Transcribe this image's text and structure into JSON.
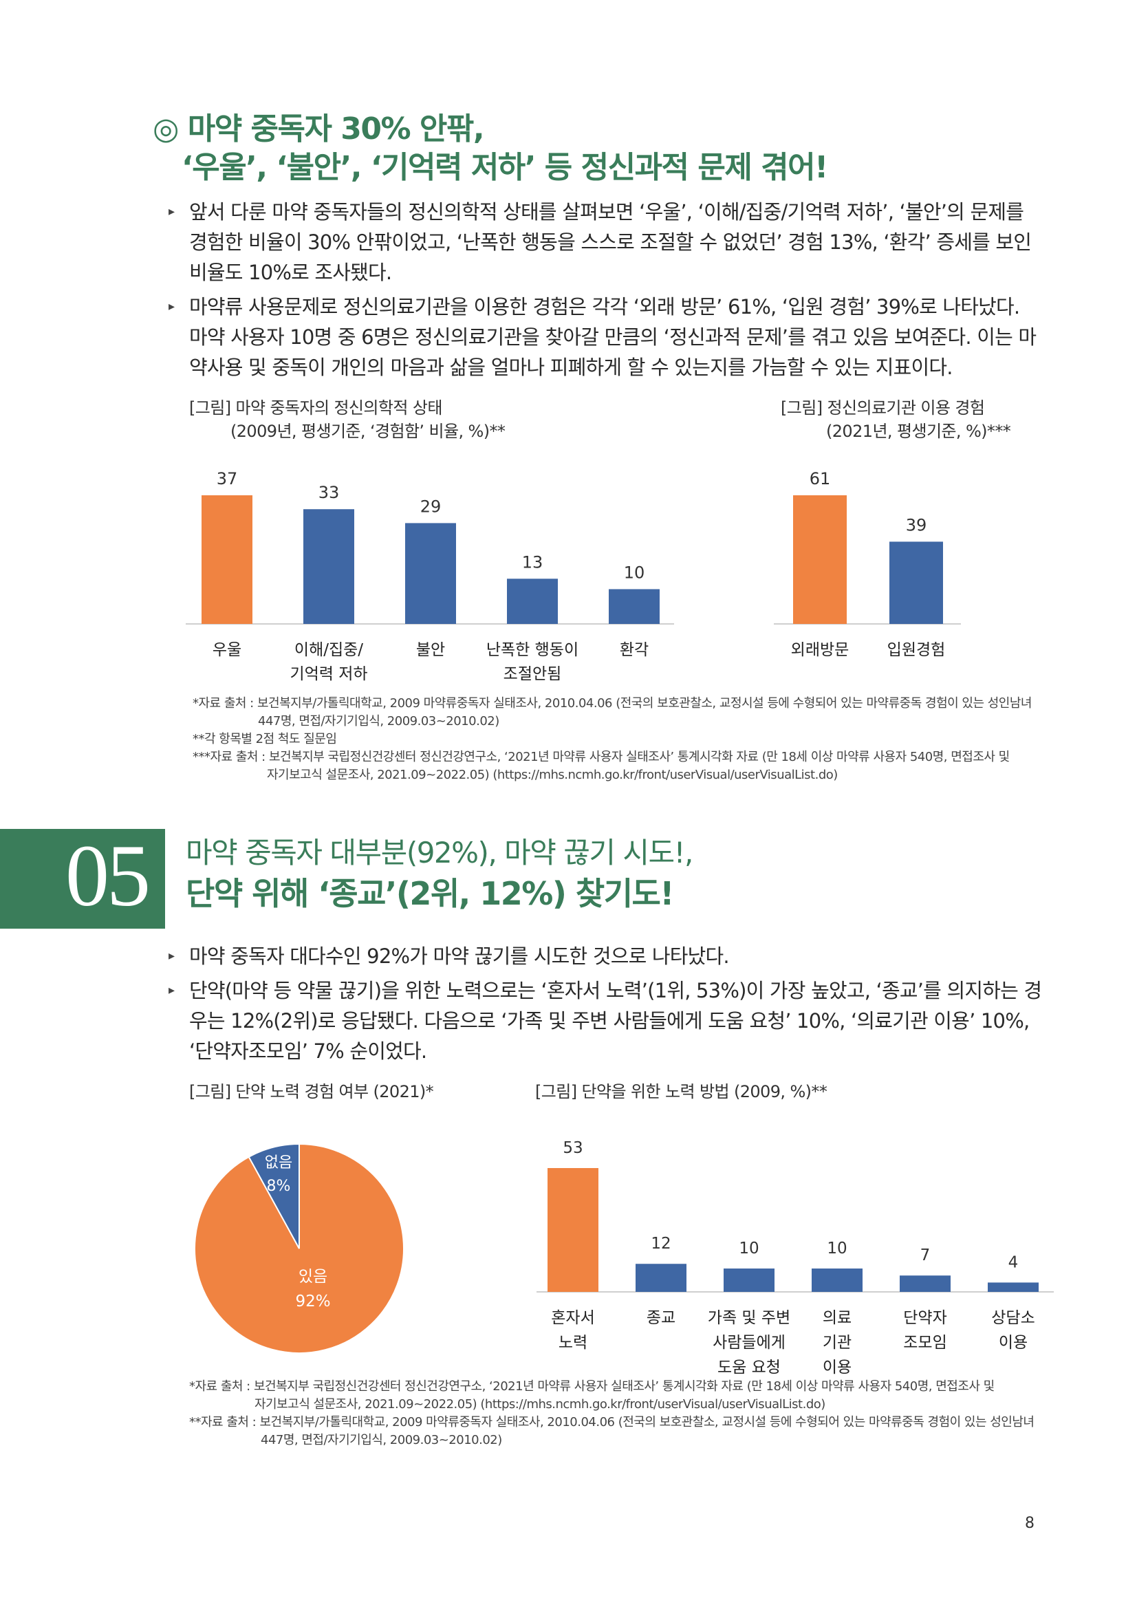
{
  "colors": {
    "accent_green": "#3a7d5a",
    "bar_orange": "#f08341",
    "bar_blue": "#3f67a4"
  },
  "section1": {
    "marker": "◎",
    "title_line1": "마약 중독자 30% 안팎,",
    "title_line2": "‘우울’, ‘불안’, ‘기억력 저하’ 등 정신과적 문제 겪어!",
    "bullets": [
      "앞서 다룬 마약 중독자들의 정신의학적 상태를 살펴보면 ‘우울’, ‘이해/집중/기억력 저하’, ‘불안’의 문제를 경험한 비율이 30% 안팎이었고, ‘난폭한 행동을 스스로 조절할 수 없었던’ 경험 13%, ‘환각’ 증세를 보인 비율도 10%로 조사됐다.",
      "마약류 사용문제로 정신의료기관을 이용한 경험은 각각 ‘외래 방문’ 61%, ‘입원 경험’ 39%로 나타났다. 마약 사용자 10명 중 6명은 정신의료기관을 찾아갈 만큼의 ‘정신과적 문제’를 겪고 있음 보여준다. 이는 마약사용 및 중독이 개인의 마음과 삶을 얼마나 피폐하게 할 수 있는지를 가늠할 수 있는 지표이다."
    ],
    "fig1_caption_line1": "[그림] 마약 중독자의 정신의학적 상태",
    "fig1_caption_line2": "(2009년, 평생기준, ‘경험함’ 비율, %)**",
    "fig2_caption_line1": "[그림] 정신의료기관 이용 경험",
    "fig2_caption_line2": "(2021년, 평생기준, %)***",
    "notes": [
      "*자료 출처 : 보건복지부/가톨릭대학교, 2009 마약류중독자 실태조사, 2010.04.06 (전국의 보호관찰소, 교정시설 등에 수형되어 있는 마약류중독 경험이 있는 성인남녀",
      "447명, 면접/자기기입식, 2009.03~2010.02)",
      "**각 항목별 2점 척도 질문임",
      "***자료 출처 : 보건복지부 국립정신건강센터 정신건강연구소, ‘2021년 마약류 사용자 실태조사’ 통계시각화 자료 (만 18세 이상 마약류 사용자 540명, 면접조사 및",
      "자기보고식 설문조사, 2021.09~2022.05) (https://mhs.ncmh.go.kr/front/userVisual/userVisualList.do)"
    ]
  },
  "section2": {
    "number": "05",
    "title_line1": "마약 중독자 대부분(92%), 마약 끊기 시도!,",
    "title_line2": "단약 위해 ‘종교’(2위, 12%) 찾기도!",
    "bullets": [
      "마약 중독자 대다수인 92%가 마약 끊기를 시도한 것으로 나타났다.",
      "단약(마약 등 약물 끊기)을 위한 노력으로는 ‘혼자서 노력’(1위, 53%)이 가장 높았고, ‘종교’를 의지하는 경우는 12%(2위)로 응답됐다. 다음으로 ‘가족 및 주변 사람들에게 도움 요청’ 10%, ‘의료기관 이용’ 10%, ‘단약자조모임’ 7% 순이었다."
    ],
    "fig3_caption": "[그림] 단약 노력 경험 여부 (2021)*",
    "fig4_caption": "[그림] 단약을 위한 노력 방법 (2009, %)**",
    "notes": [
      "*자료 출처 : 보건복지부 국립정신건강센터 정신건강연구소, ‘2021년 마약류 사용자 실태조사’ 통계시각화 자료 (만 18세 이상 마약류 사용자 540명, 면접조사 및",
      "자기보고식 설문조사, 2021.09~2022.05) (https://mhs.ncmh.go.kr/front/userVisual/userVisualList.do)",
      "**자료 출처 : 보건복지부/가톨릭대학교, 2009 마약류중독자 실태조사, 2010.04.06 (전국의 보호관찰소, 교정시설 등에 수형되어 있는 마약류중독 경험이 있는 성인남녀",
      "447명, 면접/자기기입식, 2009.03~2010.02)"
    ]
  },
  "page_number": "8",
  "chart_data": [
    {
      "type": "bar",
      "categories": [
        [
          "우울"
        ],
        [
          "이해/집중/",
          "기억력 저하"
        ],
        [
          "불안"
        ],
        [
          "난폭한 행동이",
          "조절안됨"
        ],
        [
          "환각"
        ]
      ],
      "values": [
        37,
        33,
        29,
        13,
        10
      ],
      "bar_colors": [
        "#f08341",
        "#3f67a4",
        "#3f67a4",
        "#3f67a4",
        "#3f67a4"
      ],
      "ylim": [
        0,
        37
      ]
    },
    {
      "type": "bar",
      "categories": [
        [
          "외래방문"
        ],
        [
          "입원경험"
        ]
      ],
      "values": [
        61,
        39
      ],
      "bar_colors": [
        "#f08341",
        "#3f67a4"
      ],
      "ylim": [
        0,
        61
      ]
    },
    {
      "type": "pie",
      "slices": [
        {
          "label": "있음",
          "value": 92,
          "value_label": "92%",
          "color": "#f08341"
        },
        {
          "label": "없음",
          "value": 8,
          "value_label": "8%",
          "color": "#3f67a4"
        }
      ]
    },
    {
      "type": "bar",
      "categories": [
        [
          "혼자서",
          "노력"
        ],
        [
          "종교"
        ],
        [
          "가족 및 주변",
          "사람들에게",
          "도움 요청"
        ],
        [
          "의료",
          "기관",
          "이용"
        ],
        [
          "단약자",
          "조모임"
        ],
        [
          "상담소",
          "이용"
        ]
      ],
      "values": [
        53,
        12,
        10,
        10,
        7,
        4
      ],
      "bar_colors": [
        "#f08341",
        "#3f67a4",
        "#3f67a4",
        "#3f67a4",
        "#3f67a4",
        "#3f67a4"
      ],
      "ylim": [
        0,
        53
      ]
    }
  ]
}
